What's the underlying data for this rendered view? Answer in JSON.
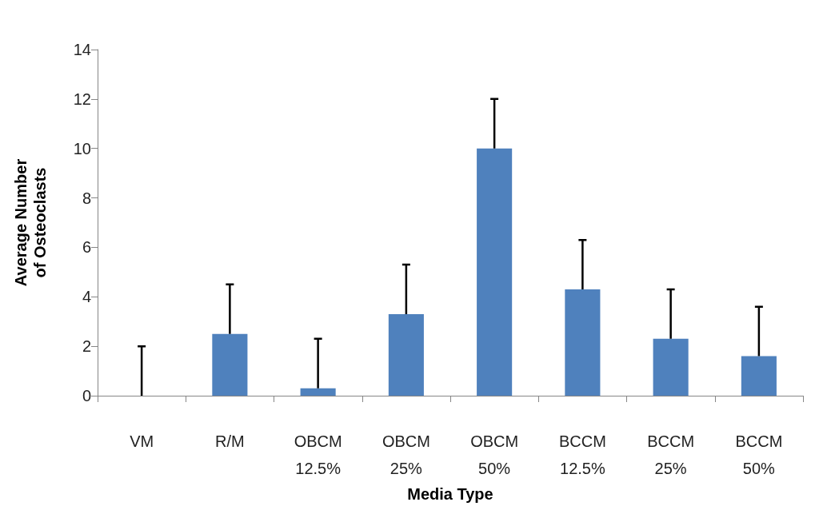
{
  "chart_data": {
    "type": "bar",
    "xlabel": "Media Type",
    "ylabel": "Average Number\nof Osteoclasts",
    "categories": [
      "VM",
      "R/M",
      "OBCM\n12.5%",
      "OBCM\n25%",
      "OBCM\n50%",
      "BCCM\n12.5%",
      "BCCM\n25%",
      "BCCM\n50%"
    ],
    "values": [
      0,
      2.5,
      0.3,
      3.3,
      10,
      4.3,
      2.3,
      1.6
    ],
    "errors": [
      [
        0,
        2
      ],
      [
        2.5,
        4.5
      ],
      [
        0.3,
        2.3
      ],
      [
        3.3,
        5.3
      ],
      [
        10,
        12
      ],
      [
        4.3,
        6.3
      ],
      [
        2.3,
        4.3
      ],
      [
        1.6,
        3.6
      ]
    ],
    "color": "#4f81bd",
    "ylim": [
      0,
      14
    ],
    "yticks": [
      0,
      2,
      4,
      6,
      8,
      10,
      12,
      14
    ],
    "grid": false
  }
}
